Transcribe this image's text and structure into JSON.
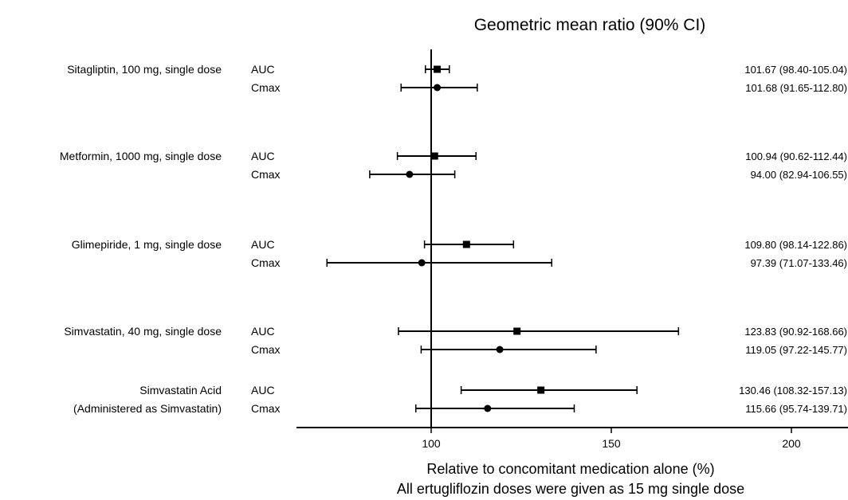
{
  "chart_data": {
    "type": "forest",
    "title": "Geometric mean ratio (90% CI)",
    "xlabel": "Relative to concomitant medication alone (%)",
    "xlabel2": "All ertugliflozin doses were given as 15 mg single dose",
    "xlim": [
      64,
      212
    ],
    "xticks": [
      100,
      150,
      200
    ],
    "reference_line": 100,
    "groups": [
      {
        "label": [
          "Sitagliptin, 100 mg, single dose"
        ],
        "rows": [
          {
            "measure": "AUC",
            "marker": "square",
            "estimate": 101.67,
            "lower": 98.4,
            "upper": 105.04,
            "text": "101.67 (98.40-105.04)"
          },
          {
            "measure": "Cmax",
            "marker": "circle",
            "estimate": 101.68,
            "lower": 91.65,
            "upper": 112.8,
            "text": "101.68 (91.65-112.80)"
          }
        ]
      },
      {
        "label": [
          "Metformin, 1000 mg, single dose"
        ],
        "rows": [
          {
            "measure": "AUC",
            "marker": "square",
            "estimate": 100.94,
            "lower": 90.62,
            "upper": 112.44,
            "text": "100.94 (90.62-112.44)"
          },
          {
            "measure": "Cmax",
            "marker": "circle",
            "estimate": 94.0,
            "lower": 82.94,
            "upper": 106.55,
            "text": "94.00 (82.94-106.55)"
          }
        ]
      },
      {
        "label": [
          "Glimepiride, 1 mg, single dose"
        ],
        "rows": [
          {
            "measure": "AUC",
            "marker": "square",
            "estimate": 109.8,
            "lower": 98.14,
            "upper": 122.86,
            "text": "109.80 (98.14-122.86)"
          },
          {
            "measure": "Cmax",
            "marker": "circle",
            "estimate": 97.39,
            "lower": 71.07,
            "upper": 133.46,
            "text": "97.39 (71.07-133.46)"
          }
        ]
      },
      {
        "label": [
          "Simvastatin, 40 mg, single dose"
        ],
        "rows": [
          {
            "measure": "AUC",
            "marker": "square",
            "estimate": 123.83,
            "lower": 90.92,
            "upper": 168.66,
            "text": "123.83 (90.92-168.66)"
          },
          {
            "measure": "Cmax",
            "marker": "circle",
            "estimate": 119.05,
            "lower": 97.22,
            "upper": 145.77,
            "text": "119.05 (97.22-145.77)"
          }
        ]
      },
      {
        "label": [
          "Simvastatin Acid",
          "(Administered as Simvastatin)"
        ],
        "rows": [
          {
            "measure": "AUC",
            "marker": "square",
            "estimate": 130.46,
            "lower": 108.32,
            "upper": 157.13,
            "text": "130.46 (108.32-157.13)"
          },
          {
            "measure": "Cmax",
            "marker": "circle",
            "estimate": 115.66,
            "lower": 95.74,
            "upper": 139.71,
            "text": "115.66 (95.74-139.71)"
          }
        ]
      }
    ]
  }
}
